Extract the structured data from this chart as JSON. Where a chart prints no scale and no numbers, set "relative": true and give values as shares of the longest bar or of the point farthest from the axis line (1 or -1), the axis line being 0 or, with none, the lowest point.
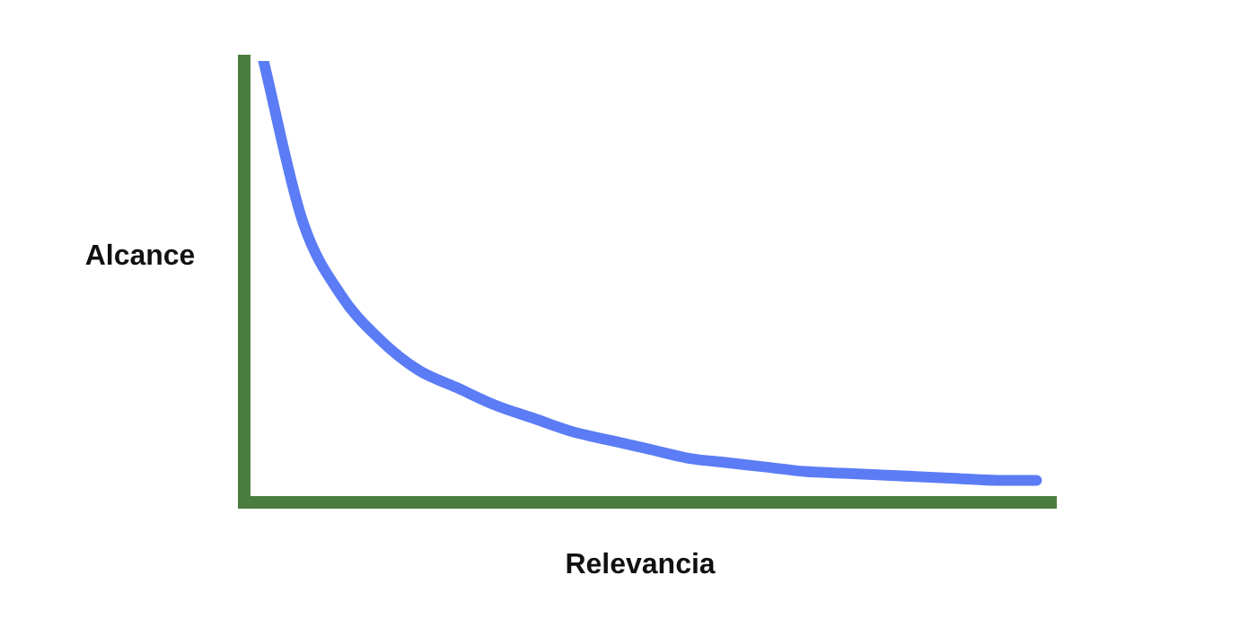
{
  "chart_data": {
    "type": "line",
    "relative": true,
    "xlabel": "Relevancia",
    "ylabel": "Alcance",
    "marker": "none",
    "legend": false,
    "categories": [
      null,
      null,
      null,
      null,
      null,
      null,
      null,
      null,
      null,
      null,
      null,
      null,
      null,
      null,
      null,
      null,
      null,
      null,
      null,
      null,
      null
    ],
    "series": [
      {
        "color": "#5b7cf5",
        "values": [
          1,
          0.64,
          0.47,
          0.37,
          0.3,
          0.26,
          0.22,
          0.19,
          0.16,
          0.14,
          0.12,
          0.1,
          0.09,
          0.08,
          0.07,
          0.066,
          0.062,
          0.058,
          0.054,
          0.05,
          0.05
        ]
      }
    ]
  }
}
